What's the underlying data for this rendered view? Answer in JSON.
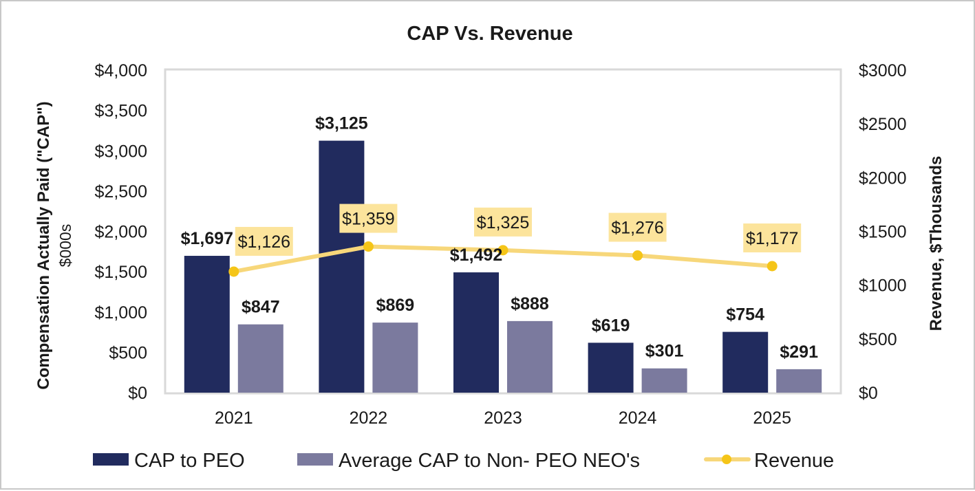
{
  "chart_data": {
    "type": "bar",
    "title": "CAP Vs. Revenue",
    "categories": [
      "2021",
      "2022",
      "2023",
      "2024",
      "2025"
    ],
    "series": [
      {
        "name": "CAP to PEO",
        "values": [
          1697,
          3125,
          1492,
          619,
          754
        ],
        "labels": [
          "$1,697",
          "$3,125",
          "$1,492",
          "$619",
          "$754"
        ],
        "color": "#212B5E",
        "kind": "bar",
        "axis": "left"
      },
      {
        "name": "Average CAP to Non- PEO NEO's",
        "values": [
          847,
          869,
          888,
          301,
          291
        ],
        "labels": [
          "$847",
          "$869",
          "$888",
          "$301",
          "$291"
        ],
        "color": "#7B7A9E",
        "kind": "bar",
        "axis": "left"
      },
      {
        "name": "Revenue",
        "values": [
          1126,
          1359,
          1325,
          1276,
          1177
        ],
        "labels": [
          "$1,126",
          "$1,359",
          "$1,325",
          "$1,276",
          "$1,177"
        ],
        "color": "#F7D77A",
        "marker_color": "#F5C518",
        "label_bg": "#FCE49C",
        "kind": "line",
        "axis": "right"
      }
    ],
    "ylabel": "Compensation Actually Paid (\"CAP\")",
    "ylabel_sub": "$000s",
    "ylim": [
      0,
      4000
    ],
    "yticks": [
      "$0",
      "$500",
      "$1,000",
      "$1,500",
      "$2,000",
      "$2,500",
      "$3,000",
      "$3,500",
      "$4,000"
    ],
    "y2label": "Revenue, $Thousands",
    "y2lim": [
      0,
      3000
    ],
    "y2ticks": [
      "$0",
      "$500",
      "$1000",
      "$1500",
      "$2000",
      "$2500",
      "$3000"
    ],
    "legend_position": "bottom",
    "grid": false
  }
}
